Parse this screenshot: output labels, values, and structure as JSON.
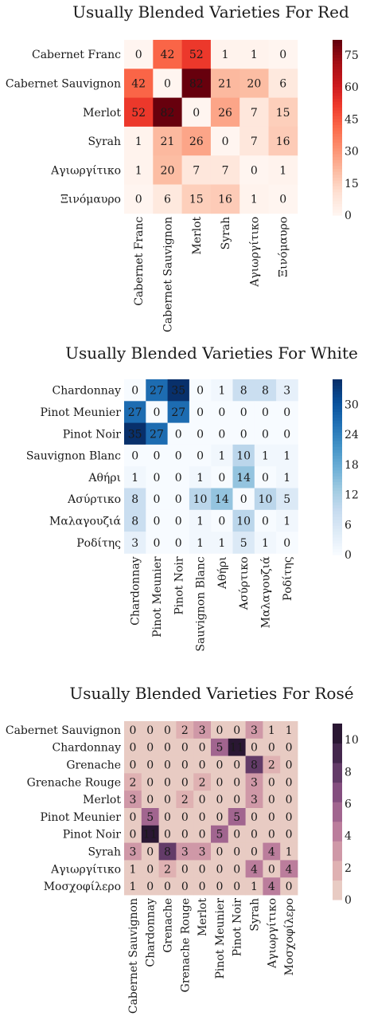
{
  "chart_data": [
    {
      "type": "heatmap",
      "title": "Usually Blended Varieties For Red",
      "categories": [
        "Cabernet Franc",
        "Cabernet Sauvignon",
        "Merlot",
        "Syrah",
        "Αγιωργίτικο",
        "Ξινόμαυρο"
      ],
      "values": [
        [
          0,
          42,
          52,
          1,
          1,
          0
        ],
        [
          42,
          0,
          82,
          21,
          20,
          6
        ],
        [
          52,
          82,
          0,
          26,
          7,
          15
        ],
        [
          1,
          21,
          26,
          0,
          7,
          16
        ],
        [
          1,
          20,
          7,
          7,
          0,
          1
        ],
        [
          0,
          6,
          15,
          16,
          1,
          0
        ]
      ],
      "colorscale": "Reds",
      "vmin": 0,
      "vmax": 82,
      "colorbar_ticks": [
        0,
        15,
        30,
        45,
        60,
        75
      ]
    },
    {
      "type": "heatmap",
      "title": "Usually Blended Varieties For White",
      "categories": [
        "Chardonnay",
        "Pinot Meunier",
        "Pinot Noir",
        "Sauvignon Blanc",
        "Αθήρι",
        "Ασύρτικο",
        "Μαλαγουζιά",
        "Ροδίτης"
      ],
      "values": [
        [
          0,
          27,
          35,
          0,
          1,
          8,
          8,
          3
        ],
        [
          27,
          0,
          27,
          0,
          0,
          0,
          0,
          0
        ],
        [
          35,
          27,
          0,
          0,
          0,
          0,
          0,
          0
        ],
        [
          0,
          0,
          0,
          0,
          1,
          10,
          1,
          1
        ],
        [
          1,
          0,
          0,
          1,
          0,
          14,
          0,
          1
        ],
        [
          8,
          0,
          0,
          10,
          14,
          0,
          10,
          5
        ],
        [
          8,
          0,
          0,
          1,
          0,
          10,
          0,
          1
        ],
        [
          3,
          0,
          0,
          1,
          1,
          5,
          1,
          0
        ]
      ],
      "colorscale": "Blues",
      "vmin": 0,
      "vmax": 35,
      "colorbar_ticks": [
        0,
        6,
        12,
        18,
        24,
        30
      ]
    },
    {
      "type": "heatmap",
      "title": "Usually Blended Varieties For Rosé",
      "categories": [
        "Cabernet Sauvignon",
        "Chardonnay",
        "Grenache",
        "Grenache Rouge",
        "Merlot",
        "Pinot Meunier",
        "Pinot Noir",
        "Syrah",
        "Αγιωργίτικο",
        "Μοσχοφίλερο"
      ],
      "values": [
        [
          0,
          0,
          0,
          2,
          3,
          0,
          0,
          3,
          1,
          1
        ],
        [
          0,
          0,
          0,
          0,
          0,
          5,
          11,
          0,
          0,
          0
        ],
        [
          0,
          0,
          0,
          0,
          0,
          0,
          0,
          8,
          2,
          0
        ],
        [
          2,
          0,
          0,
          0,
          2,
          0,
          0,
          3,
          0,
          0
        ],
        [
          3,
          0,
          0,
          2,
          0,
          0,
          0,
          3,
          0,
          0
        ],
        [
          0,
          5,
          0,
          0,
          0,
          0,
          5,
          0,
          0,
          0
        ],
        [
          0,
          11,
          0,
          0,
          0,
          5,
          0,
          0,
          0,
          0
        ],
        [
          3,
          0,
          8,
          3,
          3,
          0,
          0,
          0,
          4,
          1
        ],
        [
          1,
          0,
          2,
          0,
          0,
          0,
          0,
          4,
          0,
          4
        ],
        [
          1,
          0,
          0,
          0,
          0,
          0,
          0,
          1,
          4,
          0
        ]
      ],
      "colorscale": "Purple (discrete)",
      "vmin": 0,
      "vmax": 11,
      "colorbar_ticks": [
        0,
        2,
        4,
        6,
        8,
        10
      ]
    }
  ]
}
